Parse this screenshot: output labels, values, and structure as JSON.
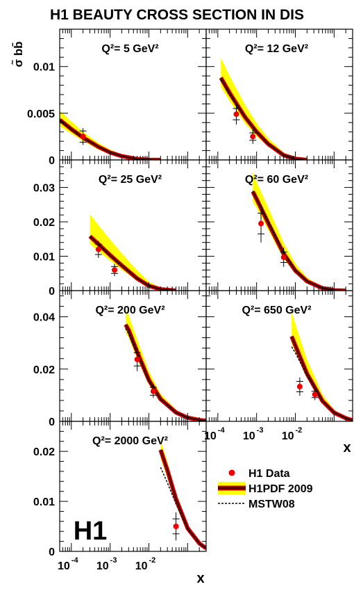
{
  "figure": {
    "title": "H1 BEAUTY CROSS SECTION IN DIS",
    "ylabel": "σ̃ bb̄",
    "xlabel": "x",
    "logo": "H1",
    "legend": [
      "H1 Data",
      "H1PDF 2009",
      "MSTW08"
    ]
  },
  "chart_data": [
    {
      "type": "line",
      "title": "Q²= 5 GeV²",
      "xlabel": "",
      "ylabel": "σ̃ bb̄",
      "xscale": "log",
      "xlim": [
        5e-05,
        0.3
      ],
      "ylim": [
        0,
        0.014
      ],
      "yticks": [
        0,
        0.005,
        0.01
      ],
      "series": [
        {
          "name": "H1 Data",
          "type": "points",
          "x": [
            0.0002
          ],
          "y": [
            0.0025
          ],
          "err_stat": [
            0.0006
          ],
          "err_tot": [
            0.0009
          ]
        },
        {
          "name": "H1PDF 2009",
          "x": [
            5e-05,
            0.0001,
            0.0002,
            0.0005,
            0.001,
            0.002,
            0.005,
            0.01,
            0.02
          ],
          "y": [
            0.0043,
            0.0033,
            0.0024,
            0.0014,
            0.0008,
            0.0004,
            0.0001,
            2e-05,
            0
          ],
          "band_lo": [
            0.0036,
            0.0028,
            0.002,
            0.0011,
            0.0006,
            0.0003,
            7e-05,
            1e-05,
            0
          ],
          "band_hi": [
            0.0053,
            0.0041,
            0.003,
            0.0018,
            0.0011,
            0.0006,
            0.00017,
            4e-05,
            0
          ]
        },
        {
          "name": "MSTW08",
          "x": [
            5e-05,
            0.0001,
            0.0002,
            0.0005,
            0.001,
            0.002,
            0.005,
            0.01,
            0.02
          ],
          "y": [
            0.0042,
            0.0032,
            0.0023,
            0.0014,
            0.0008,
            0.0004,
            0.0001,
            2e-05,
            0
          ]
        }
      ]
    },
    {
      "type": "line",
      "title": "Q²= 12 GeV²",
      "xlabel": "",
      "ylabel": "",
      "xscale": "log",
      "xlim": [
        5e-05,
        0.3
      ],
      "ylim": [
        0,
        0.014
      ],
      "yticks": [
        0,
        0.005,
        0.01
      ],
      "series": [
        {
          "name": "H1 Data",
          "type": "points",
          "x": [
            0.0003,
            0.0008
          ],
          "y": [
            0.0049,
            0.0025
          ],
          "err_stat": [
            0.0006,
            0.0004
          ],
          "err_tot": [
            0.0011,
            0.0008
          ]
        },
        {
          "name": "H1PDF 2009",
          "x": [
            0.00012,
            0.0002,
            0.0005,
            0.001,
            0.002,
            0.005,
            0.01,
            0.02
          ],
          "y": [
            0.0088,
            0.0072,
            0.0046,
            0.003,
            0.0017,
            0.0005,
            0.00012,
            0
          ],
          "band_lo": [
            0.0078,
            0.0063,
            0.0039,
            0.0025,
            0.0014,
            0.0004,
            0.0001,
            0
          ],
          "band_hi": [
            0.0109,
            0.009,
            0.0059,
            0.0039,
            0.0023,
            0.0008,
            0.0002,
            0
          ]
        },
        {
          "name": "MSTW08",
          "x": [
            0.00012,
            0.0002,
            0.0005,
            0.001,
            0.002,
            0.005,
            0.01,
            0.02
          ],
          "y": [
            0.0086,
            0.007,
            0.0046,
            0.003,
            0.0017,
            0.0005,
            0.00012,
            0
          ]
        }
      ]
    },
    {
      "type": "line",
      "title": "Q²= 25 GeV²",
      "xlabel": "",
      "ylabel": "",
      "xscale": "log",
      "xlim": [
        5e-05,
        0.3
      ],
      "ylim": [
        0,
        0.038
      ],
      "yticks": [
        0,
        0.01,
        0.02,
        0.03
      ],
      "series": [
        {
          "name": "H1 Data",
          "type": "points",
          "x": [
            0.0005,
            0.0013
          ],
          "y": [
            0.012,
            0.006
          ],
          "err_stat": [
            0.0015,
            0.001
          ],
          "err_tot": [
            0.0025,
            0.0018
          ]
        },
        {
          "name": "H1PDF 2009",
          "x": [
            0.0003,
            0.0005,
            0.001,
            0.002,
            0.005,
            0.01,
            0.02,
            0.05
          ],
          "y": [
            0.0158,
            0.0135,
            0.0103,
            0.0073,
            0.0035,
            0.0014,
            0.0004,
            0
          ],
          "band_lo": [
            0.0135,
            0.0114,
            0.0087,
            0.006,
            0.0028,
            0.0011,
            0.0003,
            0
          ],
          "band_hi": [
            0.0222,
            0.019,
            0.0148,
            0.0108,
            0.0058,
            0.0026,
            0.0008,
            0
          ]
        },
        {
          "name": "MSTW08",
          "x": [
            0.0003,
            0.0005,
            0.001,
            0.002,
            0.005,
            0.01,
            0.02,
            0.05
          ],
          "y": [
            0.0156,
            0.0133,
            0.0102,
            0.0072,
            0.0035,
            0.0014,
            0.0004,
            0
          ]
        }
      ]
    },
    {
      "type": "line",
      "title": "Q²= 60 GeV²",
      "xlabel": "",
      "ylabel": "",
      "xscale": "log",
      "xlim": [
        5e-05,
        0.3
      ],
      "ylim": [
        0,
        0.038
      ],
      "yticks": [
        0,
        0.01,
        0.02,
        0.03
      ],
      "series": [
        {
          "name": "H1 Data",
          "type": "points",
          "x": [
            0.0013,
            0.005
          ],
          "y": [
            0.0195,
            0.0097
          ],
          "err_stat": [
            0.003,
            0.0015
          ],
          "err_tot": [
            0.0055,
            0.0028
          ]
        },
        {
          "name": "H1PDF 2009",
          "x": [
            0.0008,
            0.001,
            0.002,
            0.005,
            0.01,
            0.02,
            0.05,
            0.1,
            0.2
          ],
          "y": [
            0.0288,
            0.0266,
            0.0196,
            0.0107,
            0.0058,
            0.0027,
            0.0007,
            0.0001,
            0
          ],
          "band_lo": [
            0.0258,
            0.024,
            0.0175,
            0.0093,
            0.005,
            0.0023,
            0.0005,
            0,
            0
          ],
          "band_hi": [
            0.0345,
            0.0315,
            0.024,
            0.0138,
            0.0078,
            0.0038,
            0.0011,
            0.0002,
            0
          ]
        },
        {
          "name": "MSTW08",
          "x": [
            0.0008,
            0.001,
            0.002,
            0.005,
            0.01,
            0.02,
            0.05,
            0.1,
            0.2
          ],
          "y": [
            0.029,
            0.0268,
            0.0202,
            0.0112,
            0.006,
            0.0028,
            0.0007,
            0.0001,
            0
          ]
        }
      ]
    },
    {
      "type": "line",
      "title": "Q²= 200 GeV²",
      "xlabel": "",
      "ylabel": "",
      "xscale": "log",
      "xlim": [
        5e-05,
        0.3
      ],
      "ylim": [
        0,
        0.05
      ],
      "yticks": [
        0,
        0.02,
        0.04
      ],
      "series": [
        {
          "name": "H1 Data",
          "type": "points",
          "x": [
            0.005,
            0.013
          ],
          "y": [
            0.0237,
            0.0115
          ],
          "err_stat": [
            0.0025,
            0.0015
          ],
          "err_tot": [
            0.0045,
            0.0025
          ]
        },
        {
          "name": "H1PDF 2009",
          "x": [
            0.0025,
            0.003,
            0.005,
            0.01,
            0.02,
            0.05,
            0.1,
            0.2,
            0.3
          ],
          "y": [
            0.037,
            0.035,
            0.0265,
            0.0158,
            0.0085,
            0.0034,
            0.0014,
            0.0005,
            0.0002
          ],
          "band_lo": [
            0.034,
            0.032,
            0.0238,
            0.014,
            0.0074,
            0.0028,
            0.0011,
            0.0003,
            0.0001
          ],
          "band_hi": [
            0.043,
            0.0405,
            0.0312,
            0.019,
            0.0105,
            0.0044,
            0.0019,
            0.0007,
            0.0003
          ]
        },
        {
          "name": "MSTW08",
          "x": [
            0.0025,
            0.003,
            0.005,
            0.01,
            0.02,
            0.05,
            0.1,
            0.2,
            0.3
          ],
          "y": [
            0.0355,
            0.0335,
            0.0255,
            0.0153,
            0.0083,
            0.0033,
            0.0014,
            0.0005,
            0.0002
          ]
        }
      ]
    },
    {
      "type": "line",
      "title": "Q²= 650 GeV²",
      "xlabel": "x",
      "ylabel": "",
      "xscale": "log",
      "xlim": [
        5e-05,
        0.3
      ],
      "ylim": [
        0,
        0.05
      ],
      "yticks": [
        0,
        0.02,
        0.04
      ],
      "series": [
        {
          "name": "H1 Data",
          "type": "points",
          "x": [
            0.013,
            0.032
          ],
          "y": [
            0.0133,
            0.0103
          ],
          "err_stat": [
            0.002,
            0.0012
          ],
          "err_tot": [
            0.0035,
            0.0022
          ]
        },
        {
          "name": "H1PDF 2009",
          "x": [
            0.008,
            0.01,
            0.02,
            0.05,
            0.1,
            0.2,
            0.3
          ],
          "y": [
            0.0325,
            0.029,
            0.0182,
            0.0078,
            0.0033,
            0.0012,
            0.0004
          ],
          "band_lo": [
            0.0298,
            0.0265,
            0.0165,
            0.007,
            0.0029,
            0.001,
            0.0003
          ],
          "band_hi": [
            0.042,
            0.037,
            0.0235,
            0.0102,
            0.0044,
            0.0016,
            0.0006
          ]
        },
        {
          "name": "MSTW08",
          "x": [
            0.008,
            0.01,
            0.02,
            0.05,
            0.1,
            0.2,
            0.3
          ],
          "y": [
            0.0285,
            0.0262,
            0.0175,
            0.0078,
            0.0034,
            0.0012,
            0.0004
          ]
        }
      ]
    },
    {
      "type": "line",
      "title": "Q²= 2000 GeV²",
      "xlabel": "x",
      "ylabel": "",
      "xscale": "log",
      "xlim": [
        5e-05,
        0.3
      ],
      "ylim": [
        0,
        0.026
      ],
      "yticks": [
        0,
        0.01,
        0.02
      ],
      "series": [
        {
          "name": "H1 Data",
          "type": "points",
          "x": [
            0.05
          ],
          "y": [
            0.005
          ],
          "err_stat": [
            0.0015
          ],
          "err_tot": [
            0.0028
          ]
        },
        {
          "name": "H1PDF 2009",
          "x": [
            0.02,
            0.03,
            0.05,
            0.1,
            0.2,
            0.3
          ],
          "y": [
            0.0203,
            0.0162,
            0.0105,
            0.0046,
            0.0016,
            0.0006
          ],
          "band_lo": [
            0.0186,
            0.0146,
            0.0093,
            0.0039,
            0.0012,
            0.0004
          ],
          "band_hi": [
            0.0222,
            0.0178,
            0.0118,
            0.0054,
            0.002,
            0.0009
          ]
        },
        {
          "name": "MSTW08",
          "x": [
            0.02,
            0.03,
            0.05,
            0.1,
            0.2,
            0.3
          ],
          "y": [
            0.0168,
            0.0137,
            0.0095,
            0.0044,
            0.0016,
            0.0006
          ]
        }
      ]
    }
  ]
}
